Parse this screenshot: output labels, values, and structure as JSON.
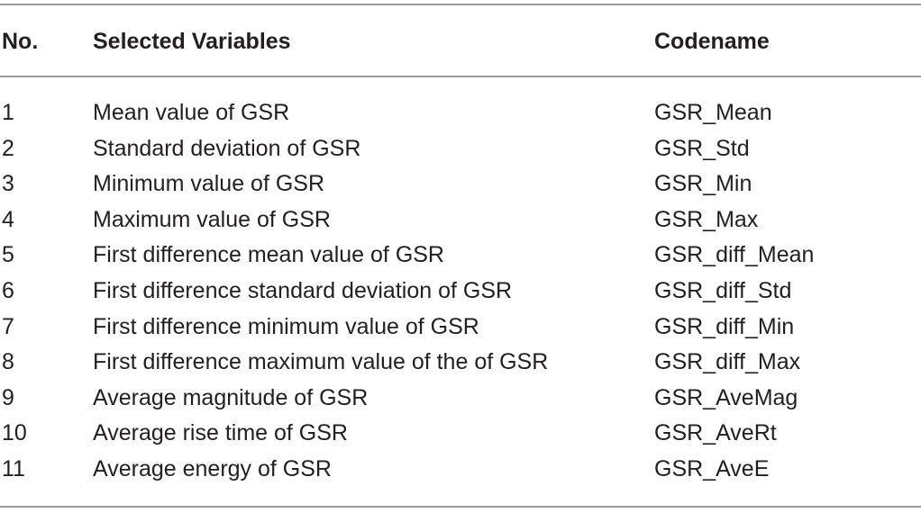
{
  "table": {
    "headers": {
      "no": "No.",
      "variable": "Selected Variables",
      "codename": "Codename"
    },
    "rows": [
      {
        "no": "1",
        "variable": "Mean value of GSR",
        "codename": "GSR_Mean"
      },
      {
        "no": "2",
        "variable": "Standard deviation of GSR",
        "codename": "GSR_Std"
      },
      {
        "no": "3",
        "variable": "Minimum value of GSR",
        "codename": "GSR_Min"
      },
      {
        "no": "4",
        "variable": "Maximum value of GSR",
        "codename": "GSR_Max"
      },
      {
        "no": "5",
        "variable": "First difference mean value of GSR",
        "codename": "GSR_diff_Mean"
      },
      {
        "no": "6",
        "variable": "First difference standard deviation of GSR",
        "codename": "GSR_diff_Std"
      },
      {
        "no": "7",
        "variable": "First difference minimum value of GSR",
        "codename": "GSR_diff_Min"
      },
      {
        "no": "8",
        "variable": "First difference maximum value of the of GSR",
        "codename": "GSR_diff_Max"
      },
      {
        "no": "9",
        "variable": "Average magnitude of GSR",
        "codename": "GSR_AveMag"
      },
      {
        "no": "10",
        "variable": "Average rise time of GSR",
        "codename": "GSR_AveRt"
      },
      {
        "no": "11",
        "variable": "Average energy of GSR",
        "codename": "GSR_AveE"
      }
    ]
  }
}
